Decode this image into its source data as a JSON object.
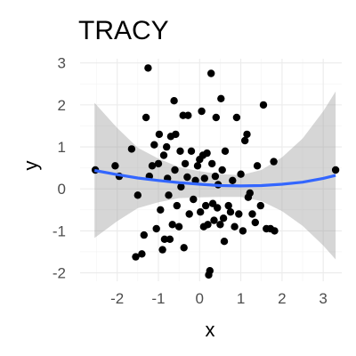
{
  "chart_data": {
    "type": "scatter",
    "title": "TRACY",
    "xlabel": "x",
    "ylabel": "y",
    "xlim": [
      -2.9,
      3.45
    ],
    "ylim": [
      -2.2,
      3.1
    ],
    "xticks": [
      -2,
      -1,
      0,
      1,
      2,
      3
    ],
    "yticks": [
      -2,
      -1,
      0,
      1,
      2,
      3
    ],
    "grid": true,
    "points": [
      [
        -2.53,
        0.45
      ],
      [
        -2.05,
        0.55
      ],
      [
        -1.95,
        0.3
      ],
      [
        -1.65,
        0.95
      ],
      [
        -1.55,
        -1.62
      ],
      [
        -1.5,
        -0.15
      ],
      [
        -1.4,
        -1.55
      ],
      [
        -1.35,
        -1.1
      ],
      [
        -1.3,
        1.7
      ],
      [
        -1.25,
        2.88
      ],
      [
        -1.22,
        0.3
      ],
      [
        -1.15,
        0.55
      ],
      [
        -1.1,
        1.05
      ],
      [
        -1.05,
        -0.95
      ],
      [
        -1.0,
        0.6
      ],
      [
        -0.98,
        1.3
      ],
      [
        -0.95,
        -0.5
      ],
      [
        -0.9,
        -1.45
      ],
      [
        -0.87,
        0.8
      ],
      [
        -0.85,
        -1.2
      ],
      [
        -0.8,
        1.0
      ],
      [
        -0.78,
        0.25
      ],
      [
        -0.75,
        -0.15
      ],
      [
        -0.72,
        -1.2
      ],
      [
        -0.7,
        1.25
      ],
      [
        -0.66,
        -0.85
      ],
      [
        -0.62,
        2.1
      ],
      [
        -0.6,
        0.45
      ],
      [
        -0.58,
        1.3
      ],
      [
        -0.55,
        -0.4
      ],
      [
        -0.5,
        -0.9
      ],
      [
        -0.47,
        0.9
      ],
      [
        -0.45,
        0.05
      ],
      [
        -0.4,
        1.75
      ],
      [
        -0.38,
        -1.4
      ],
      [
        -0.35,
        0.6
      ],
      [
        -0.3,
        0.28
      ],
      [
        -0.28,
        1.75
      ],
      [
        -0.25,
        -0.6
      ],
      [
        -0.2,
        0.9
      ],
      [
        -0.15,
        -0.25
      ],
      [
        -0.1,
        0.2
      ],
      [
        -0.05,
        0.55
      ],
      [
        0.0,
        0.7
      ],
      [
        0.02,
        -0.55
      ],
      [
        0.05,
        1.85
      ],
      [
        0.08,
        0.8
      ],
      [
        0.1,
        -0.9
      ],
      [
        0.12,
        0.25
      ],
      [
        0.15,
        -0.4
      ],
      [
        0.18,
        0.85
      ],
      [
        0.2,
        -0.85
      ],
      [
        0.22,
        -2.05
      ],
      [
        0.25,
        -1.95
      ],
      [
        0.28,
        2.75
      ],
      [
        0.3,
        0.6
      ],
      [
        0.32,
        -0.35
      ],
      [
        0.35,
        -0.75
      ],
      [
        0.38,
        0.3
      ],
      [
        0.4,
        1.7
      ],
      [
        0.43,
        -0.45
      ],
      [
        0.45,
        0.1
      ],
      [
        0.5,
        -0.85
      ],
      [
        0.52,
        2.15
      ],
      [
        0.55,
        0.45
      ],
      [
        0.58,
        -0.7
      ],
      [
        0.6,
        -1.25
      ],
      [
        0.62,
        0.9
      ],
      [
        0.7,
        -0.4
      ],
      [
        0.75,
        -0.55
      ],
      [
        0.8,
        0.2
      ],
      [
        0.85,
        -0.9
      ],
      [
        0.9,
        1.7
      ],
      [
        0.95,
        -0.6
      ],
      [
        1.0,
        0.35
      ],
      [
        1.05,
        -1.0
      ],
      [
        1.1,
        1.15
      ],
      [
        1.15,
        1.3
      ],
      [
        1.18,
        -0.2
      ],
      [
        1.22,
        -0.1
      ],
      [
        1.28,
        -0.6
      ],
      [
        1.35,
        -0.8
      ],
      [
        1.4,
        0.55
      ],
      [
        1.48,
        -0.4
      ],
      [
        1.55,
        2.0
      ],
      [
        1.62,
        -0.95
      ],
      [
        1.72,
        -0.95
      ],
      [
        1.82,
        -1.0
      ],
      [
        1.8,
        0.65
      ],
      [
        3.3,
        0.45
      ]
    ],
    "smooth": {
      "x": [
        -2.55,
        -2.0,
        -1.5,
        -1.0,
        -0.5,
        0.0,
        0.5,
        1.0,
        1.5,
        2.0,
        2.5,
        3.0,
        3.3
      ],
      "y": [
        0.44,
        0.34,
        0.26,
        0.2,
        0.15,
        0.11,
        0.08,
        0.07,
        0.08,
        0.11,
        0.16,
        0.25,
        0.32
      ],
      "upper": [
        2.05,
        1.45,
        0.98,
        0.72,
        0.52,
        0.42,
        0.35,
        0.33,
        0.45,
        0.75,
        1.2,
        1.85,
        2.32
      ],
      "lower": [
        -1.17,
        -0.77,
        -0.46,
        -0.32,
        -0.22,
        -0.2,
        -0.19,
        -0.19,
        -0.29,
        -0.53,
        -0.88,
        -1.35,
        -1.68
      ]
    },
    "colors": {
      "points": "#000000",
      "line": "#3366ff",
      "ribbon": "#999999"
    }
  }
}
